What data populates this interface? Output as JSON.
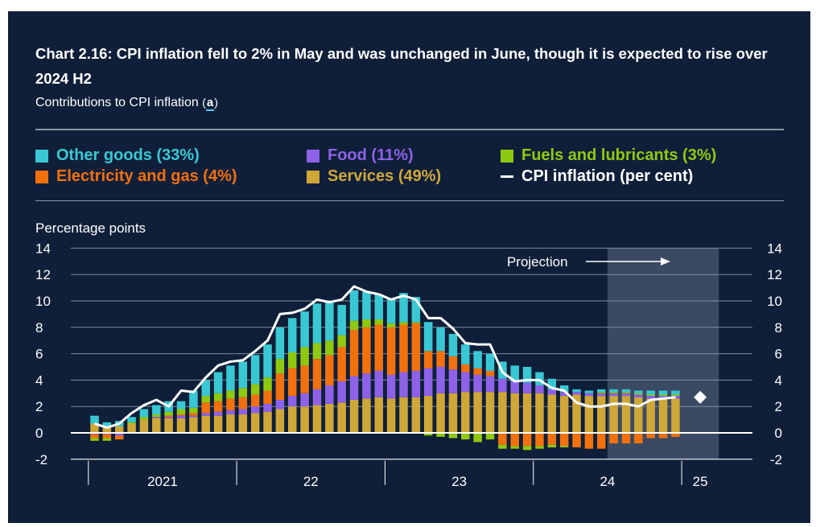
{
  "title": "Chart 2.16: CPI inflation fell to 2% in May and was unchanged in June, though it is expected to rise over 2024 H2",
  "subtitle": "Contributions to CPI inflation",
  "subtitle_footnote": "a",
  "colors": {
    "background": "#0f1f39",
    "other_goods": "#39c8d3",
    "electricity_gas": "#f2710d",
    "food": "#8d62e8",
    "fuels": "#8fc90f",
    "services": "#cfa739",
    "cpi": "#ffffff",
    "projection_shade": "#3b4a63"
  },
  "legend": [
    {
      "key": "other_goods",
      "label": "Other goods (33%)",
      "color": "#39c8d3",
      "marker": "square"
    },
    {
      "key": "electricity_gas",
      "label": "Electricity and gas (4%)",
      "color": "#f2710d",
      "marker": "square"
    },
    {
      "key": "food",
      "label": "Food (11%)",
      "color": "#8d62e8",
      "marker": "square"
    },
    {
      "key": "services",
      "label": "Services (49%)",
      "color": "#cfa739",
      "marker": "square"
    },
    {
      "key": "fuels",
      "label": "Fuels and lubricants (3%)",
      "color": "#8fc90f",
      "marker": "square"
    },
    {
      "key": "cpi",
      "label": "CPI inflation (per cent)",
      "color": "#ffffff",
      "marker": "line"
    }
  ],
  "chart_data": {
    "type": "bar",
    "stacked": true,
    "ylabel": "Percentage points",
    "ylim": [
      -2,
      14
    ],
    "yticks": [
      -2,
      0,
      2,
      4,
      6,
      8,
      10,
      12,
      14
    ],
    "x_period": [
      "2021-01",
      "2025-03"
    ],
    "year_labels": [
      "2021",
      "22",
      "23",
      "24",
      "25"
    ],
    "projection_start": "2024-07",
    "projection_label": "Projection",
    "x": [
      "2021-01",
      "2021-02",
      "2021-03",
      "2021-04",
      "2021-05",
      "2021-06",
      "2021-07",
      "2021-08",
      "2021-09",
      "2021-10",
      "2021-11",
      "2021-12",
      "2022-01",
      "2022-02",
      "2022-03",
      "2022-04",
      "2022-05",
      "2022-06",
      "2022-07",
      "2022-08",
      "2022-09",
      "2022-10",
      "2022-11",
      "2022-12",
      "2023-01",
      "2023-02",
      "2023-03",
      "2023-04",
      "2023-05",
      "2023-06",
      "2023-07",
      "2023-08",
      "2023-09",
      "2023-10",
      "2023-11",
      "2023-12",
      "2024-01",
      "2024-02",
      "2024-03",
      "2024-04",
      "2024-05",
      "2024-06",
      "2024-07",
      "2024-08",
      "2024-09",
      "2024-10",
      "2024-11",
      "2024-12"
    ],
    "series": [
      {
        "key": "services",
        "name": "Services (49%)",
        "values": [
          0.7,
          0.5,
          0.5,
          0.7,
          1.0,
          1.1,
          1.1,
          1.1,
          1.2,
          1.3,
          1.3,
          1.4,
          1.4,
          1.5,
          1.6,
          1.8,
          2.0,
          2.0,
          2.1,
          2.2,
          2.3,
          2.5,
          2.6,
          2.7,
          2.6,
          2.7,
          2.7,
          2.8,
          3.0,
          3.0,
          3.1,
          3.1,
          3.1,
          3.1,
          3.0,
          3.0,
          3.0,
          2.9,
          2.8,
          2.9,
          2.8,
          2.8,
          2.8,
          2.8,
          2.7,
          2.6,
          2.6,
          2.6
        ]
      },
      {
        "key": "food",
        "name": "Food (11%)",
        "values": [
          -0.1,
          -0.1,
          -0.2,
          0.0,
          0.0,
          0.1,
          0.1,
          0.2,
          0.1,
          0.2,
          0.3,
          0.3,
          0.4,
          0.5,
          0.6,
          0.7,
          0.8,
          1.0,
          1.2,
          1.4,
          1.6,
          1.8,
          1.9,
          2.0,
          1.8,
          1.9,
          2.0,
          2.1,
          2.0,
          1.8,
          1.5,
          1.3,
          1.2,
          1.0,
          0.9,
          0.8,
          0.6,
          0.4,
          0.3,
          0.2,
          0.2,
          0.2,
          0.2,
          0.2,
          0.2,
          0.2,
          0.2,
          0.2
        ]
      },
      {
        "key": "electricity_gas",
        "name": "Electricity and gas (4%)",
        "values": [
          -0.3,
          -0.3,
          -0.3,
          0.0,
          0.0,
          0.0,
          0.1,
          0.1,
          0.2,
          0.8,
          0.8,
          0.9,
          0.9,
          0.9,
          1.0,
          2.0,
          2.1,
          2.1,
          2.3,
          2.3,
          2.6,
          3.5,
          3.5,
          3.5,
          3.6,
          3.6,
          3.6,
          1.3,
          1.2,
          1.0,
          0.6,
          0.5,
          0.4,
          -0.9,
          -1.0,
          -1.0,
          -1.0,
          -0.9,
          -1.0,
          -1.1,
          -1.2,
          -1.2,
          -0.8,
          -0.8,
          -0.8,
          -0.4,
          -0.4,
          -0.3
        ]
      },
      {
        "key": "fuels",
        "name": "Fuels and lubricants (3%)",
        "values": [
          -0.2,
          -0.2,
          0.0,
          0.1,
          0.2,
          0.2,
          0.3,
          0.4,
          0.4,
          0.5,
          0.6,
          0.6,
          0.7,
          0.8,
          1.0,
          1.1,
          1.2,
          1.4,
          1.2,
          1.1,
          0.9,
          0.7,
          0.6,
          0.4,
          0.3,
          0.2,
          0.1,
          -0.2,
          -0.3,
          -0.4,
          -0.5,
          -0.7,
          -0.5,
          -0.3,
          -0.2,
          -0.3,
          -0.2,
          -0.2,
          -0.1,
          0.0,
          0.0,
          0.1,
          0.1,
          0.1,
          0.1,
          0.1,
          0.1,
          0.1
        ]
      },
      {
        "key": "other_goods",
        "name": "Other goods (33%)",
        "values": [
          0.6,
          0.3,
          0.4,
          0.4,
          0.6,
          0.7,
          0.8,
          0.6,
          1.3,
          1.2,
          1.6,
          1.9,
          2.0,
          2.2,
          2.5,
          2.4,
          2.6,
          2.7,
          3.0,
          3.0,
          2.3,
          2.3,
          2.1,
          1.9,
          1.9,
          2.2,
          1.9,
          2.2,
          1.8,
          1.7,
          1.5,
          1.3,
          1.3,
          1.3,
          1.2,
          1.2,
          1.0,
          0.8,
          0.5,
          0.2,
          0.2,
          0.2,
          0.2,
          0.2,
          0.2,
          0.3,
          0.3,
          0.3
        ]
      }
    ],
    "cpi_inflation": {
      "name": "CPI inflation (per cent)",
      "values": [
        0.7,
        0.4,
        0.7,
        1.5,
        2.1,
        2.5,
        2.0,
        3.2,
        3.1,
        4.2,
        5.1,
        5.4,
        5.5,
        6.2,
        7.0,
        9.0,
        9.1,
        9.4,
        10.1,
        9.9,
        10.1,
        11.1,
        10.7,
        10.5,
        10.1,
        10.4,
        10.1,
        8.7,
        8.7,
        7.9,
        6.8,
        6.7,
        6.7,
        4.6,
        3.9,
        4.0,
        4.0,
        3.4,
        3.2,
        2.3,
        2.0,
        2.0,
        2.2,
        2.2,
        2.0,
        2.5,
        2.6,
        2.7
      ]
    },
    "projection_point": {
      "x": "2025-Q1",
      "y": 2.7,
      "marker": "diamond"
    }
  }
}
